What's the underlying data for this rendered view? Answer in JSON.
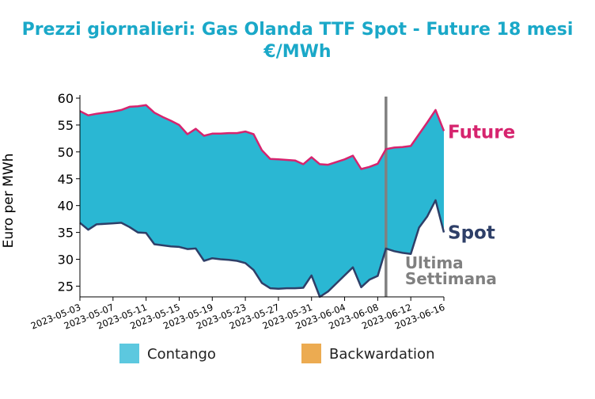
{
  "chart_data": {
    "type": "area",
    "title_line1": "Prezzi giornalieri: Gas Olanda TTF Spot - Future 18 mesi",
    "title_line2": "€/MWh",
    "ylabel": "Euro per MWh",
    "ylim": [
      23,
      60
    ],
    "yticks": [
      25,
      30,
      35,
      40,
      45,
      50,
      55,
      60
    ],
    "xlim": [
      "2023-05-03",
      "2023-06-16"
    ],
    "xticks": [
      "2023-05-03",
      "2023-05-07",
      "2023-05-11",
      "2023-05-15",
      "2023-05-19",
      "2023-05-23",
      "2023-05-27",
      "2023-05-31",
      "2023-06-04",
      "2023-06-08",
      "2023-06-12",
      "2023-06-16"
    ],
    "series": [
      {
        "name": "Future",
        "color": "#d6246e",
        "points": [
          [
            "2023-05-03",
            57.6
          ],
          [
            "2023-05-04",
            56.8
          ],
          [
            "2023-05-05",
            57.1
          ],
          [
            "2023-05-06",
            57.3
          ],
          [
            "2023-05-07",
            57.5
          ],
          [
            "2023-05-08",
            57.8
          ],
          [
            "2023-05-09",
            58.4
          ],
          [
            "2023-05-10",
            58.5
          ],
          [
            "2023-05-11",
            58.7
          ],
          [
            "2023-05-12",
            57.3
          ],
          [
            "2023-05-13",
            56.5
          ],
          [
            "2023-05-14",
            55.8
          ],
          [
            "2023-05-15",
            55.0
          ],
          [
            "2023-05-16",
            53.3
          ],
          [
            "2023-05-17",
            54.3
          ],
          [
            "2023-05-18",
            53.0
          ],
          [
            "2023-05-19",
            53.4
          ],
          [
            "2023-05-20",
            53.4
          ],
          [
            "2023-05-21",
            53.5
          ],
          [
            "2023-05-22",
            53.5
          ],
          [
            "2023-05-23",
            53.8
          ],
          [
            "2023-05-24",
            53.3
          ],
          [
            "2023-05-25",
            50.3
          ],
          [
            "2023-05-26",
            48.7
          ],
          [
            "2023-05-27",
            48.6
          ],
          [
            "2023-05-28",
            48.5
          ],
          [
            "2023-05-29",
            48.4
          ],
          [
            "2023-05-30",
            47.7
          ],
          [
            "2023-05-31",
            49.0
          ],
          [
            "2023-06-01",
            47.7
          ],
          [
            "2023-06-02",
            47.6
          ],
          [
            "2023-06-03",
            48.1
          ],
          [
            "2023-06-04",
            48.6
          ],
          [
            "2023-06-05",
            49.3
          ],
          [
            "2023-06-06",
            46.8
          ],
          [
            "2023-06-07",
            47.2
          ],
          [
            "2023-06-08",
            47.8
          ],
          [
            "2023-06-09",
            50.5
          ],
          [
            "2023-06-10",
            50.8
          ],
          [
            "2023-06-11",
            50.9
          ],
          [
            "2023-06-12",
            51.1
          ],
          [
            "2023-06-13",
            53.3
          ],
          [
            "2023-06-14",
            55.5
          ],
          [
            "2023-06-15",
            57.8
          ],
          [
            "2023-06-16",
            53.9
          ]
        ]
      },
      {
        "name": "Spot",
        "color": "#2e3f68",
        "points": [
          [
            "2023-05-03",
            36.8
          ],
          [
            "2023-05-04",
            35.5
          ],
          [
            "2023-05-05",
            36.5
          ],
          [
            "2023-05-06",
            36.6
          ],
          [
            "2023-05-07",
            36.7
          ],
          [
            "2023-05-08",
            36.8
          ],
          [
            "2023-05-09",
            36.0
          ],
          [
            "2023-05-10",
            35.0
          ],
          [
            "2023-05-11",
            34.9
          ],
          [
            "2023-05-12",
            32.8
          ],
          [
            "2023-05-13",
            32.6
          ],
          [
            "2023-05-14",
            32.4
          ],
          [
            "2023-05-15",
            32.3
          ],
          [
            "2023-05-16",
            31.9
          ],
          [
            "2023-05-17",
            32.0
          ],
          [
            "2023-05-18",
            29.7
          ],
          [
            "2023-05-19",
            30.2
          ],
          [
            "2023-05-20",
            30.0
          ],
          [
            "2023-05-21",
            29.9
          ],
          [
            "2023-05-22",
            29.7
          ],
          [
            "2023-05-23",
            29.3
          ],
          [
            "2023-05-24",
            28.0
          ],
          [
            "2023-05-25",
            25.6
          ],
          [
            "2023-05-26",
            24.6
          ],
          [
            "2023-05-27",
            24.5
          ],
          [
            "2023-05-28",
            24.6
          ],
          [
            "2023-05-29",
            24.6
          ],
          [
            "2023-05-30",
            24.7
          ],
          [
            "2023-05-31",
            27.0
          ],
          [
            "2023-06-01",
            23.0
          ],
          [
            "2023-06-02",
            24.0
          ],
          [
            "2023-06-03",
            25.5
          ],
          [
            "2023-06-04",
            27.0
          ],
          [
            "2023-06-05",
            28.5
          ],
          [
            "2023-06-06",
            24.8
          ],
          [
            "2023-06-07",
            26.2
          ],
          [
            "2023-06-08",
            26.9
          ],
          [
            "2023-06-09",
            32.0
          ],
          [
            "2023-06-10",
            31.5
          ],
          [
            "2023-06-11",
            31.2
          ],
          [
            "2023-06-12",
            31.0
          ],
          [
            "2023-06-13",
            35.9
          ],
          [
            "2023-06-14",
            38.0
          ],
          [
            "2023-06-15",
            41.0
          ],
          [
            "2023-06-16",
            35.0
          ]
        ]
      }
    ],
    "fill_between": {
      "contango_color": "#2ab7d3",
      "backwardation_color": "#ecab51"
    },
    "vline": {
      "x": "2023-06-09",
      "color": "#808080",
      "label_line1": "Ultima",
      "label_line2": "Settimana"
    },
    "legend": {
      "position": "bottom",
      "items": [
        {
          "label": "Contango",
          "color": "#5cc8df"
        },
        {
          "label": "Backwardation",
          "color": "#ecab51"
        }
      ]
    }
  }
}
